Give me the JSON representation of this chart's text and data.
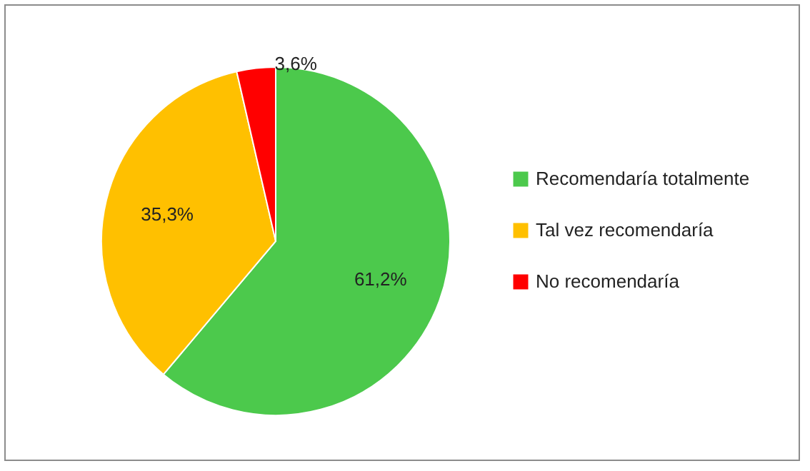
{
  "chart_data": {
    "type": "pie",
    "categories": [
      "Recomendaría totalmente",
      "Tal vez recomendaría",
      "No recomendaría"
    ],
    "values": [
      61.2,
      35.3,
      3.6
    ],
    "colors": [
      "#4cc94c",
      "#ffc000",
      "#ff0000"
    ],
    "value_labels": [
      "61,2%",
      "35,3%",
      "3,6%"
    ],
    "legend": "right"
  }
}
